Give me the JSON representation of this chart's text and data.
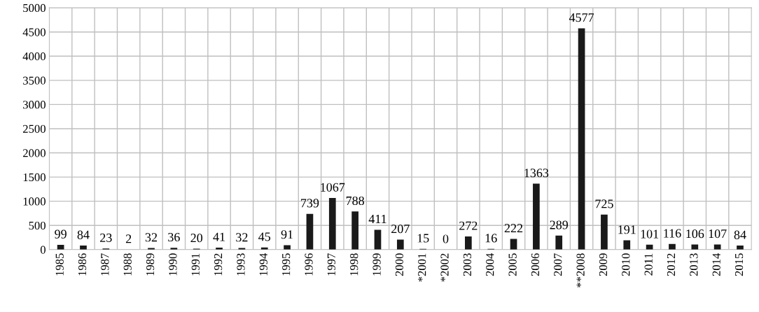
{
  "chart_data": {
    "type": "bar",
    "categories": [
      "1985",
      "1986",
      "1987",
      "1988",
      "1989",
      "1990",
      "1991",
      "1992",
      "1993",
      "1994",
      "1995",
      "1996",
      "1997",
      "1998",
      "1999",
      "2000",
      "*2001",
      "*2002",
      "2003",
      "2004",
      "2005",
      "2006",
      "2007",
      "**2008",
      "2009",
      "2010",
      "2011",
      "2012",
      "2013",
      "2014",
      "2015"
    ],
    "values": [
      99,
      84,
      23,
      2,
      32,
      36,
      20,
      41,
      32,
      45,
      91,
      739,
      1067,
      788,
      411,
      207,
      15,
      0,
      272,
      16,
      222,
      1363,
      289,
      4577,
      725,
      191,
      101,
      116,
      106,
      107,
      84
    ],
    "color": "#1a1a1a",
    "ylim": [
      0,
      5000
    ],
    "yticks": [
      0,
      500,
      1000,
      1500,
      2000,
      2500,
      3000,
      3500,
      4000,
      4500,
      5000
    ],
    "grid": true,
    "data_labels": true
  }
}
